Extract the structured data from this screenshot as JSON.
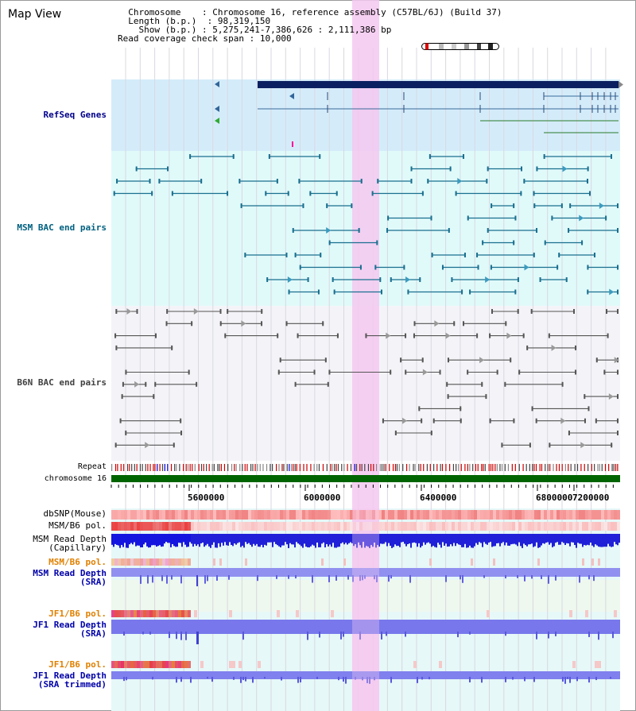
{
  "header": {
    "map_view_label": "Map View",
    "chromosome_key": "Chromosome",
    "chromosome_value": "Chromosome 16, reference assembly (C57BL/6J) (Build 37)",
    "length_key": "Length (b.p.)",
    "length_value": "98,319,150",
    "show_key": "Show (b.p.)",
    "show_value": "5,275,241-7,386,626 : 2,111,386 bp",
    "coverage_key": "Read coverage check span",
    "coverage_value": "10,000"
  },
  "tracks": {
    "refseq": {
      "label": "RefSeq Genes",
      "color": "#00008b"
    },
    "msm_bac": {
      "label": "MSM BAC end pairs",
      "color": "#006080"
    },
    "b6n_bac": {
      "label": "B6N BAC end pairs",
      "color": "#404040"
    },
    "repeat": {
      "label": "Repeat"
    },
    "chromosome": {
      "label": "chromosome 16"
    },
    "dbsnp": {
      "label": "dbSNP(Mouse)"
    },
    "msm_b6_pol": {
      "label": "MSM/B6 pol."
    },
    "msm_depth_cap": {
      "label": "MSM Read Depth\n(Capillary)"
    },
    "msm_b6_pol2": {
      "label": "MSM/B6 pol.",
      "color": "#e08000"
    },
    "msm_depth_sra": {
      "label": "MSM Read Depth\n(SRA)",
      "color": "#0000aa"
    },
    "jf1_b6_pol": {
      "label": "JF1/B6 pol.",
      "color": "#e08000"
    },
    "jf1_depth_sra": {
      "label": "JF1 Read Depth\n(SRA)",
      "color": "#0000aa"
    },
    "jf1_b6_pol2": {
      "label": "JF1/B6 pol.",
      "color": "#e08000"
    },
    "jf1_depth_trim": {
      "label": "JF1 Read Depth\n(SRA trimmed)",
      "color": "#0000aa"
    }
  },
  "axis": {
    "ticks": [
      "5600000",
      "6000000",
      "6400000",
      "6800000",
      "7200000"
    ]
  },
  "colors": {
    "highlight": "#f5c8f0",
    "refseq_bg": "#d4ecfa",
    "msm_bg": "#e0fafa",
    "b6n_bg": "#f4f4f8",
    "chrom_bar": "#006400"
  }
}
